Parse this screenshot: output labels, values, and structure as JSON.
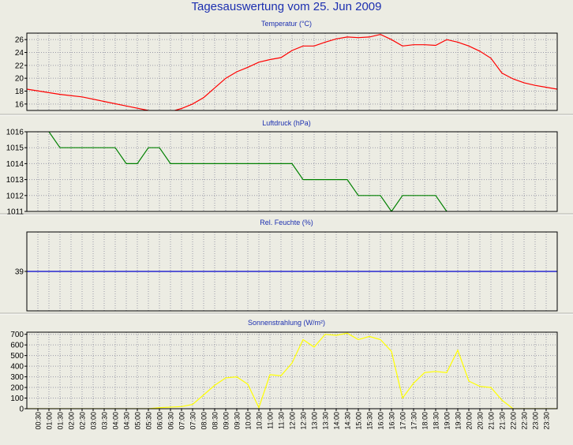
{
  "title": "Tagesauswertung vom 25. Jun 2009",
  "chart_data": [
    {
      "type": "line",
      "title": "Temperatur (°C)",
      "color": "#ff0000",
      "ylim": [
        15,
        27
      ],
      "yticks": [
        16,
        18,
        20,
        22,
        24,
        26
      ],
      "points": [
        [
          0,
          18.3
        ],
        [
          1.5,
          17.5
        ],
        [
          2.5,
          17.1
        ],
        [
          3.5,
          16.4
        ],
        [
          4.5,
          15.7
        ],
        [
          5.5,
          15.0
        ],
        [
          6.0,
          14.8
        ],
        [
          6.5,
          14.8
        ],
        [
          7.0,
          15.3
        ],
        [
          7.5,
          16.0
        ],
        [
          8.0,
          17.0
        ],
        [
          8.5,
          18.5
        ],
        [
          9.0,
          20.0
        ],
        [
          9.5,
          21.0
        ],
        [
          10.0,
          21.7
        ],
        [
          10.5,
          22.5
        ],
        [
          11.0,
          22.9
        ],
        [
          11.5,
          23.2
        ],
        [
          12.0,
          24.3
        ],
        [
          12.5,
          25.0
        ],
        [
          13.0,
          25.0
        ],
        [
          13.5,
          25.6
        ],
        [
          14.0,
          26.1
        ],
        [
          14.5,
          26.4
        ],
        [
          15.0,
          26.3
        ],
        [
          15.5,
          26.4
        ],
        [
          16.0,
          26.8
        ],
        [
          16.5,
          26.0
        ],
        [
          17.0,
          25.0
        ],
        [
          17.5,
          25.2
        ],
        [
          18.0,
          25.2
        ],
        [
          18.5,
          25.1
        ],
        [
          19.0,
          26.0
        ],
        [
          19.5,
          25.6
        ],
        [
          20.0,
          25.0
        ],
        [
          20.5,
          24.2
        ],
        [
          21.0,
          23.1
        ],
        [
          21.5,
          20.8
        ],
        [
          22.0,
          19.9
        ],
        [
          22.5,
          19.3
        ],
        [
          23.0,
          18.9
        ],
        [
          23.5,
          18.6
        ],
        [
          24.0,
          18.3
        ]
      ]
    },
    {
      "type": "line",
      "title": "Luftdruck (hPa)",
      "color": "#008000",
      "ylim": [
        1011,
        1016
      ],
      "yticks": [
        1011,
        1012,
        1013,
        1014,
        1015,
        1016
      ],
      "points": [
        [
          1.0,
          1016
        ],
        [
          1.5,
          1015
        ],
        [
          4.0,
          1015
        ],
        [
          4.5,
          1014
        ],
        [
          5.0,
          1014
        ],
        [
          5.5,
          1015
        ],
        [
          6.0,
          1015
        ],
        [
          6.5,
          1014
        ],
        [
          12.0,
          1014
        ],
        [
          12.5,
          1013
        ],
        [
          14.5,
          1013
        ],
        [
          15.0,
          1012
        ],
        [
          16.0,
          1012
        ],
        [
          16.5,
          1011
        ],
        [
          17.0,
          1012
        ],
        [
          18.5,
          1012
        ],
        [
          19.0,
          1011
        ]
      ]
    },
    {
      "type": "line",
      "title": "Rel. Feuchte (%)",
      "color": "#0000cc",
      "ylim": [
        34,
        44
      ],
      "yticks": [
        39
      ],
      "points": [
        [
          0,
          39
        ],
        [
          24,
          39
        ]
      ]
    },
    {
      "type": "line",
      "title": "Sonnenstrahlung (W/m²)",
      "color": "#ffff00",
      "ylim": [
        0,
        720
      ],
      "yticks": [
        0,
        100,
        200,
        300,
        400,
        500,
        600,
        700
      ],
      "points": [
        [
          0,
          0
        ],
        [
          5.5,
          0
        ],
        [
          6.0,
          10
        ],
        [
          7.0,
          20
        ],
        [
          7.5,
          40
        ],
        [
          8.0,
          130
        ],
        [
          8.5,
          220
        ],
        [
          9.0,
          290
        ],
        [
          9.5,
          300
        ],
        [
          10.0,
          230
        ],
        [
          10.5,
          10
        ],
        [
          11.0,
          320
        ],
        [
          11.5,
          310
        ],
        [
          12.0,
          430
        ],
        [
          12.5,
          650
        ],
        [
          13.0,
          580
        ],
        [
          13.5,
          700
        ],
        [
          14.0,
          690
        ],
        [
          14.5,
          710
        ],
        [
          15.0,
          650
        ],
        [
          15.5,
          680
        ],
        [
          16.0,
          650
        ],
        [
          16.5,
          540
        ],
        [
          17.0,
          100
        ],
        [
          17.5,
          240
        ],
        [
          18.0,
          340
        ],
        [
          18.5,
          350
        ],
        [
          19.0,
          340
        ],
        [
          19.5,
          550
        ],
        [
          20.0,
          260
        ],
        [
          20.5,
          210
        ],
        [
          21.0,
          200
        ],
        [
          21.5,
          80
        ],
        [
          22.0,
          0
        ],
        [
          24.0,
          0
        ]
      ]
    }
  ],
  "x_axis": {
    "ticks": [
      "00:30",
      "01:00",
      "01:30",
      "02:00",
      "02:30",
      "03:00",
      "03:30",
      "04:00",
      "04:30",
      "05:00",
      "05:30",
      "06:00",
      "06:30",
      "07:00",
      "07:30",
      "08:00",
      "08:30",
      "09:00",
      "09:30",
      "10:00",
      "10:30",
      "11:00",
      "11:30",
      "12:00",
      "12:30",
      "13:00",
      "13:30",
      "14:00",
      "14:30",
      "15:00",
      "15:30",
      "16:00",
      "16:30",
      "17:00",
      "17:30",
      "18:00",
      "18:30",
      "19:00",
      "19:30",
      "20:00",
      "20:30",
      "21:00",
      "21:30",
      "22:00",
      "22:30",
      "23:00",
      "23:30"
    ]
  }
}
